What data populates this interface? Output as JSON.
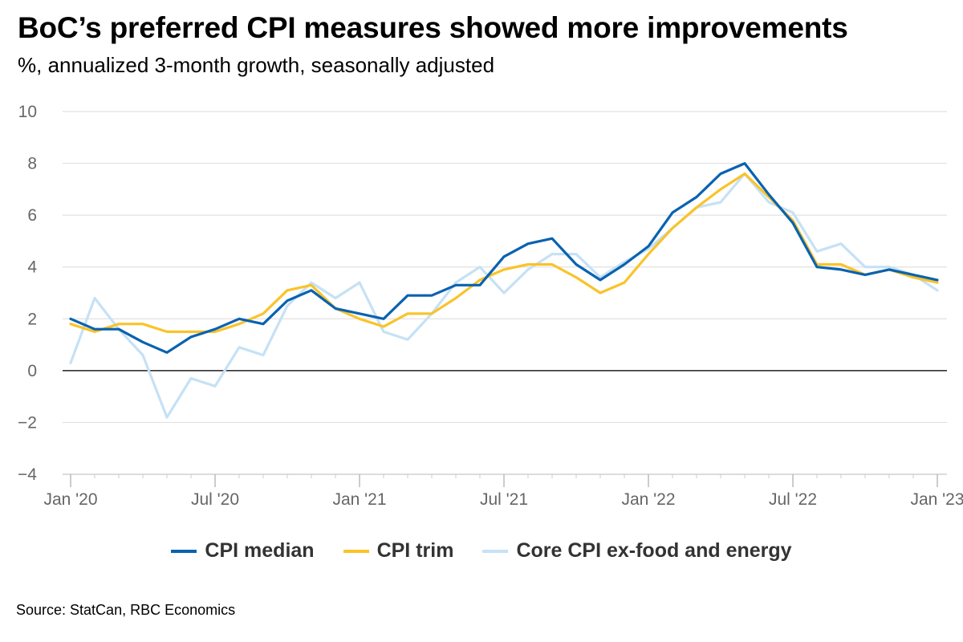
{
  "title": "BoC’s preferred CPI measures showed more improvements",
  "subtitle": "%, annualized 3-month growth, seasonally adjusted",
  "source": "Source: StatCan, RBC Economics",
  "chart_data": {
    "type": "line",
    "title": "BoC’s preferred CPI measures showed more improvements",
    "subtitle": "%, annualized 3-month growth, seasonally adjusted",
    "xlabel": "",
    "ylabel": "",
    "ylim": [
      -4,
      10
    ],
    "yticks": [
      -4,
      -2,
      0,
      2,
      4,
      6,
      8,
      10
    ],
    "ytick_labels": [
      "−4",
      "−2",
      "0",
      "2",
      "4",
      "6",
      "8",
      "10"
    ],
    "x": [
      "2020-01",
      "2020-02",
      "2020-03",
      "2020-04",
      "2020-05",
      "2020-06",
      "2020-07",
      "2020-08",
      "2020-09",
      "2020-10",
      "2020-11",
      "2020-12",
      "2021-01",
      "2021-02",
      "2021-03",
      "2021-04",
      "2021-05",
      "2021-06",
      "2021-07",
      "2021-08",
      "2021-09",
      "2021-10",
      "2021-11",
      "2021-12",
      "2022-01",
      "2022-02",
      "2022-03",
      "2022-04",
      "2022-05",
      "2022-06",
      "2022-07",
      "2022-08",
      "2022-09",
      "2022-10",
      "2022-11",
      "2022-12",
      "2023-01"
    ],
    "xticks": [
      {
        "index": 0,
        "label": "Jan '20"
      },
      {
        "index": 6,
        "label": "Jul '20"
      },
      {
        "index": 12,
        "label": "Jan '21"
      },
      {
        "index": 18,
        "label": "Jul '21"
      },
      {
        "index": 24,
        "label": "Jan '22"
      },
      {
        "index": 30,
        "label": "Jul '22"
      },
      {
        "index": 36,
        "label": "Jan '23"
      }
    ],
    "grid": true,
    "legend_position": "bottom",
    "series": [
      {
        "name": "CPI median",
        "color": "#0a62b0",
        "values": [
          2.0,
          1.6,
          1.6,
          1.1,
          0.7,
          1.3,
          1.6,
          2.0,
          1.8,
          2.7,
          3.1,
          2.4,
          2.2,
          2.0,
          2.9,
          2.9,
          3.3,
          3.3,
          4.4,
          4.9,
          5.1,
          4.1,
          3.5,
          4.1,
          4.8,
          6.1,
          6.7,
          7.6,
          8.0,
          6.8,
          5.7,
          4.0,
          3.9,
          3.7,
          3.9,
          3.7,
          3.5
        ]
      },
      {
        "name": "CPI trim",
        "color": "#f9c32a",
        "values": [
          1.8,
          1.5,
          1.8,
          1.8,
          1.5,
          1.5,
          1.5,
          1.8,
          2.2,
          3.1,
          3.3,
          2.4,
          2.0,
          1.7,
          2.2,
          2.2,
          2.8,
          3.5,
          3.9,
          4.1,
          4.1,
          3.6,
          3.0,
          3.4,
          4.5,
          5.5,
          6.3,
          7.0,
          7.6,
          6.7,
          5.8,
          4.1,
          4.1,
          3.7,
          3.9,
          3.6,
          3.4
        ]
      },
      {
        "name": "Core CPI ex-food and energy",
        "color": "#c6e1f5",
        "values": [
          0.3,
          2.8,
          1.6,
          0.6,
          -1.8,
          -0.3,
          -0.6,
          0.9,
          0.6,
          2.5,
          3.4,
          2.8,
          3.4,
          1.5,
          1.2,
          2.2,
          3.4,
          4.0,
          3.0,
          3.9,
          4.5,
          4.5,
          3.6,
          4.2,
          4.7,
          5.5,
          6.3,
          6.5,
          7.6,
          6.5,
          6.1,
          4.6,
          4.9,
          4.0,
          4.0,
          3.7,
          3.1
        ]
      }
    ]
  }
}
